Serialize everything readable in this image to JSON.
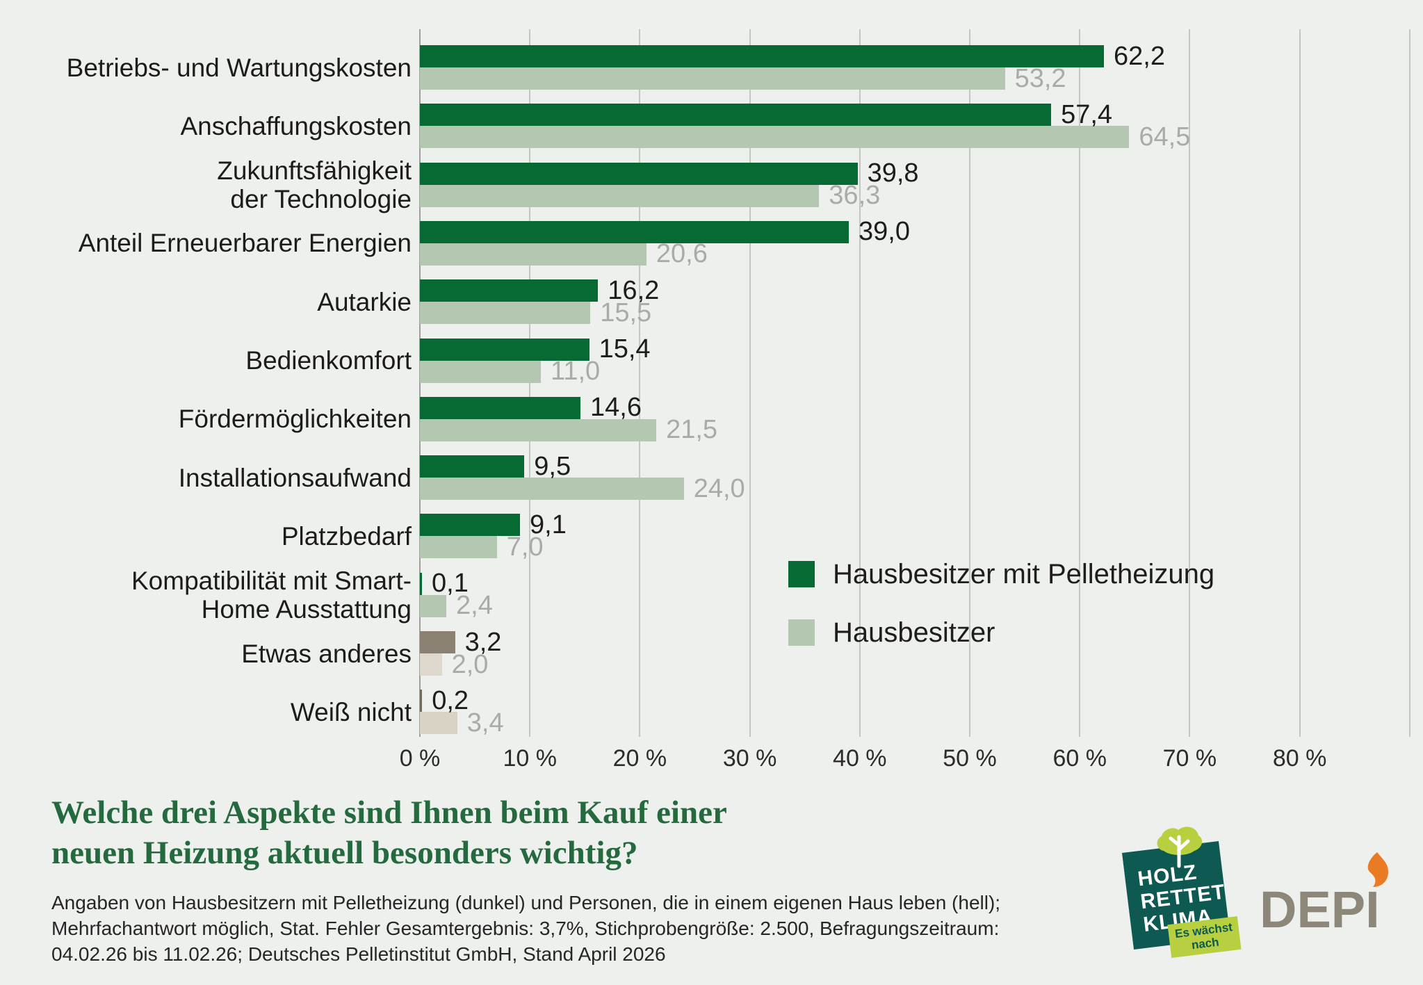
{
  "chart_data": {
    "type": "bar",
    "orientation": "horizontal",
    "categories": [
      {
        "lines": [
          "Betriebs- und Wartungskosten"
        ]
      },
      {
        "lines": [
          "Anschaffungskosten"
        ]
      },
      {
        "lines": [
          "Zukunftsfähigkeit",
          "der Technologie"
        ]
      },
      {
        "lines": [
          "Anteil Erneuerbarer Energien"
        ]
      },
      {
        "lines": [
          "Autarkie"
        ]
      },
      {
        "lines": [
          "Bedienkomfort"
        ]
      },
      {
        "lines": [
          "Fördermöglichkeiten"
        ]
      },
      {
        "lines": [
          "Installationsaufwand"
        ]
      },
      {
        "lines": [
          "Platzbedarf"
        ]
      },
      {
        "lines": [
          "Kompatibilität mit Smart-",
          "Home Ausstattung"
        ]
      },
      {
        "lines": [
          "Etwas anderes"
        ]
      },
      {
        "lines": [
          "Weiß nicht"
        ]
      }
    ],
    "series": [
      {
        "name": "Hausbesitzer mit Pelletheizung",
        "color": "#076a32",
        "values": [
          62.2,
          57.4,
          39.8,
          39.0,
          16.2,
          15.4,
          14.6,
          9.5,
          9.1,
          0.1,
          3.2,
          0.2
        ]
      },
      {
        "name": "Hausbesitzer",
        "color": "#b4c8b1",
        "values": [
          53.2,
          64.5,
          36.3,
          20.6,
          15.5,
          11.0,
          21.5,
          24.0,
          7.0,
          2.4,
          2.0,
          3.4
        ]
      }
    ],
    "row_color_overrides": {
      "10": {
        "dark": "#8a8173",
        "light": "#ded9cc"
      },
      "11": {
        "dark": "#716a5d",
        "light": "#d8d3c5"
      }
    },
    "x_ticks": [
      "0 %",
      "10 %",
      "20 %",
      "30 %",
      "40 %",
      "50 %",
      "60 %",
      "70 %",
      "80 %"
    ],
    "xlim": [
      0,
      90
    ],
    "grid": true,
    "decimal_separator": ",",
    "value_label_colors": {
      "dark": "#1d1d1b",
      "light": "#a9aba6"
    },
    "legend_position": "inside-right"
  },
  "legend": {
    "items": [
      {
        "label": "Hausbesitzer mit Pelletheizung",
        "color": "#076a32"
      },
      {
        "label": "Hausbesitzer",
        "color": "#b4c8b1"
      }
    ]
  },
  "title": {
    "lines": [
      "Welche drei Aspekte sind Ihnen beim Kauf einer",
      "neuen Heizung aktuell besonders wichtig?"
    ],
    "color": "#25693f"
  },
  "footnote": {
    "lines": [
      "Angaben von Hausbesitzern mit Pelletheizung (dunkel) und Personen, die in einem eigenen Haus leben (hell);",
      "Mehrfachantwort möglich, Stat. Fehler Gesamtergebnis: 3,7%, Stichprobengröße: 2.500, Befragungszeitraum:",
      "04.02.26 bis 11.02.26; Deutsches Pelletinstitut GmbH, Stand April 2026"
    ]
  },
  "logos": {
    "hrk": {
      "line1": "HOLZ",
      "line2": "RETTET",
      "line3": "KLIMA",
      "tag_line1": "Es wächst",
      "tag_line2": "nach",
      "bg_color": "#0e5951",
      "accent_color": "#b8cf3f"
    },
    "depi": {
      "text": "DEPI",
      "color": "#8d8779",
      "flame_color": "#e97b25"
    }
  }
}
